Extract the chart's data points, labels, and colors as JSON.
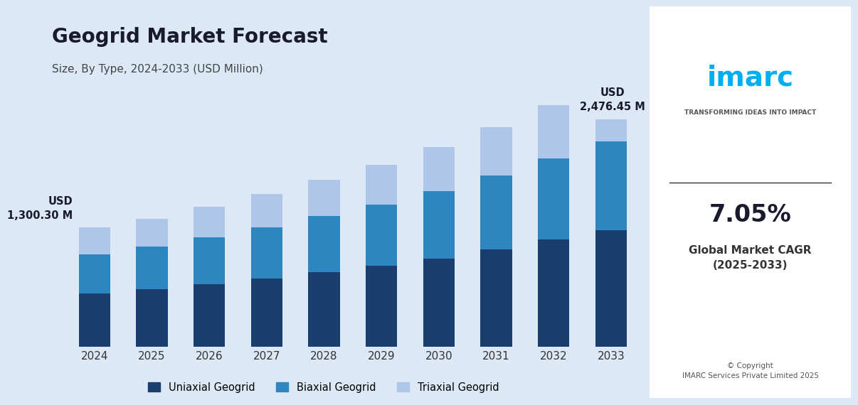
{
  "title": "Geogrid Market Forecast",
  "subtitle": "Size, By Type, 2024-2033 (USD Million)",
  "years": [
    2024,
    2025,
    2026,
    2027,
    2028,
    2029,
    2030,
    2031,
    2032,
    2033
  ],
  "uniaxial": [
    580,
    625,
    680,
    745,
    810,
    880,
    960,
    1060,
    1165,
    1270
  ],
  "biaxial": [
    430,
    465,
    510,
    555,
    610,
    665,
    730,
    800,
    880,
    960
  ],
  "triaxial": [
    290,
    305,
    335,
    365,
    400,
    435,
    480,
    530,
    580,
    246.45
  ],
  "annotation_2024_text": "USD\n1,300.30 M",
  "annotation_2033_text": "USD\n2,476.45 M",
  "total_2024": 1300.3,
  "total_2033": 2476.45,
  "color_uniaxial": "#1a3f6f",
  "color_biaxial": "#2e86c1",
  "color_triaxial": "#aec6e8",
  "background_color": "#dce8f5",
  "legend_labels": [
    "Uniaxial Geogrid",
    "Biaxial Geogrid",
    "Triaxial Geogrid"
  ],
  "ylabel": "",
  "bar_width": 0.55
}
